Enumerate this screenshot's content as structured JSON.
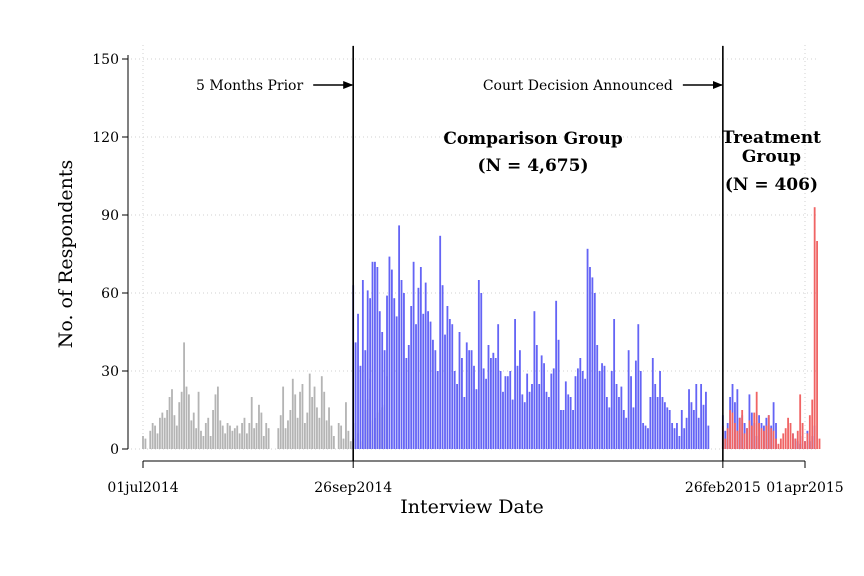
{
  "chart_data": {
    "type": "bar",
    "xlabel": "Interview Date",
    "ylabel": "No. of Respondents",
    "ylim": [
      0,
      150
    ],
    "xlim": [
      "2014-07-01",
      "2015-04-01"
    ],
    "y_ticks": [
      0,
      30,
      60,
      90,
      120,
      150
    ],
    "x_ticks": [
      {
        "date": "2014-07-01",
        "label": "01jul2014"
      },
      {
        "date": "2014-09-26",
        "label": "26sep2014"
      },
      {
        "date": "2015-02-26",
        "label": "26feb2015"
      },
      {
        "date": "2015-04-01",
        "label": "01apr2015"
      }
    ],
    "grid": true,
    "vlines": [
      {
        "date": "2014-09-26",
        "label": "5 Months Prior"
      },
      {
        "date": "2015-02-26",
        "label": "Court Decision Announced"
      }
    ],
    "group_labels": [
      {
        "lines": [
          "Comparison Group",
          "(N = 4,675)"
        ]
      },
      {
        "lines": [
          "Treatment",
          "Group",
          "(N = 406)"
        ]
      }
    ],
    "series": [
      {
        "start": "2014-07-01",
        "color": "#b4b4b4",
        "values": [
          5,
          4,
          0,
          7,
          10,
          9,
          6,
          12,
          14,
          12,
          15,
          20,
          23,
          13,
          9,
          18,
          22,
          41,
          24,
          21,
          11,
          14,
          8,
          22,
          7,
          5,
          10,
          12,
          5,
          15,
          21,
          24,
          11,
          9,
          6,
          10,
          9,
          7,
          8,
          9,
          6,
          10,
          12,
          6,
          10,
          20,
          8,
          10,
          17,
          14,
          5,
          10,
          8,
          0,
          0,
          0,
          8,
          13,
          24,
          8,
          11,
          15,
          27,
          21,
          12,
          22,
          25,
          10,
          14,
          29,
          20,
          24,
          16,
          12,
          28,
          22,
          11,
          16,
          9,
          5,
          0,
          10,
          9,
          4,
          18,
          7,
          3,
          4,
          10,
          6,
          3,
          0,
          15,
          19,
          27,
          11,
          12,
          14,
          15,
          16,
          17,
          28
        ]
      },
      {
        "start": "2014-09-26",
        "color": "#6464f5",
        "values": [
          63,
          41,
          52,
          32,
          65,
          38,
          61,
          58,
          72,
          72,
          70,
          53,
          45,
          38,
          59,
          74,
          69,
          58,
          51,
          86,
          65,
          60,
          35,
          40,
          55,
          72,
          48,
          62,
          70,
          52,
          64,
          53,
          49,
          42,
          38,
          30,
          82,
          63,
          44,
          55,
          50,
          48,
          30,
          25,
          45,
          35,
          20,
          41,
          38,
          38,
          32,
          23,
          65,
          60,
          31,
          27,
          40,
          35,
          37,
          35,
          48,
          30,
          22,
          28,
          28,
          30,
          19,
          50,
          32,
          38,
          21,
          18,
          29,
          22,
          25,
          53,
          40,
          25,
          36,
          33,
          22,
          20,
          29,
          31,
          57,
          42,
          15,
          15,
          26,
          21,
          20,
          15,
          28,
          31,
          35,
          30,
          27,
          77,
          70,
          66,
          60,
          40,
          30,
          33,
          32,
          20,
          16,
          30,
          50,
          25,
          20,
          24,
          15,
          12,
          38,
          28,
          16,
          34,
          48,
          30,
          10,
          9,
          8,
          20,
          35,
          25,
          20,
          30,
          20,
          18,
          16,
          15,
          10,
          8,
          10,
          5,
          15,
          8,
          12,
          23,
          18,
          15,
          25,
          12,
          25,
          17,
          22,
          9,
          0,
          0,
          0,
          0,
          0,
          13,
          7,
          10,
          20,
          25,
          18,
          23,
          12,
          13,
          10,
          8,
          21,
          14,
          10,
          5,
          13,
          10,
          9,
          12,
          13,
          9,
          18,
          10,
          0,
          0,
          0,
          0,
          0,
          0,
          6,
          4,
          3,
          2,
          5,
          3,
          7,
          3,
          5,
          9
        ]
      },
      {
        "start": "2015-02-26",
        "color": "#f06464",
        "values": [
          9,
          4,
          8,
          15,
          14,
          10,
          7,
          12,
          15,
          6,
          8,
          11,
          9,
          14,
          22,
          10,
          8,
          7,
          9,
          13,
          8,
          7,
          4,
          2,
          4,
          6,
          8,
          12,
          10,
          6,
          4,
          7,
          21,
          10,
          3,
          6,
          13,
          19,
          93,
          80,
          4
        ]
      }
    ]
  }
}
